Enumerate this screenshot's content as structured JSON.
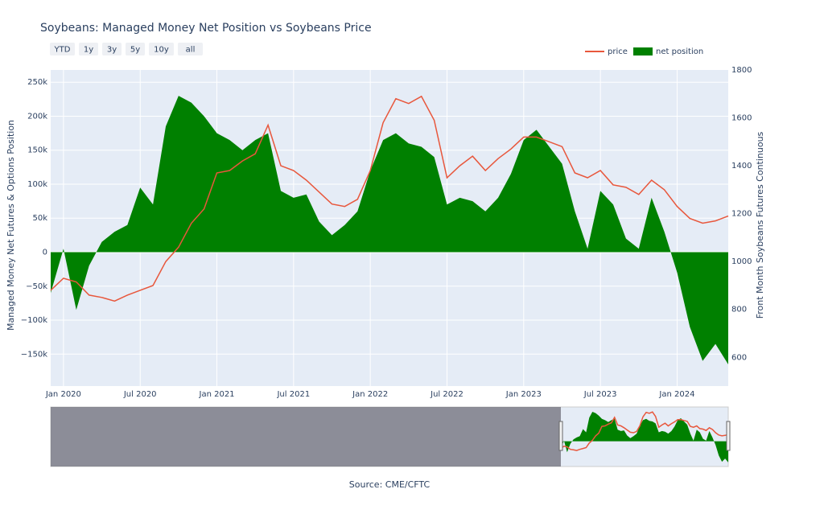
{
  "chart_data": {
    "type": "area-line",
    "title": "Soybeans: Managed Money Net Position vs Soybeans Price",
    "source": "Source: CME/CFTC",
    "y_label": "Managed Money Net Futures & Options Position",
    "y2_label": "Front Month Soybeans Futures Continuous",
    "range_buttons": [
      "YTD",
      "1y",
      "3y",
      "5y",
      "10y",
      "all"
    ],
    "x": [
      "2019-12",
      "2020-01",
      "2020-02",
      "2020-03",
      "2020-04",
      "2020-05",
      "2020-06",
      "2020-07",
      "2020-08",
      "2020-09",
      "2020-10",
      "2020-11",
      "2020-12",
      "2021-01",
      "2021-02",
      "2021-03",
      "2021-04",
      "2021-05",
      "2021-06",
      "2021-07",
      "2021-08",
      "2021-09",
      "2021-10",
      "2021-11",
      "2021-12",
      "2022-01",
      "2022-02",
      "2022-03",
      "2022-04",
      "2022-05",
      "2022-06",
      "2022-07",
      "2022-08",
      "2022-09",
      "2022-10",
      "2022-11",
      "2022-12",
      "2023-01",
      "2023-02",
      "2023-03",
      "2023-04",
      "2023-05",
      "2023-06",
      "2023-07",
      "2023-08",
      "2023-09",
      "2023-10",
      "2023-11",
      "2023-12",
      "2024-01",
      "2024-02",
      "2024-03",
      "2024-04",
      "2024-05"
    ],
    "series": [
      {
        "name": "price",
        "color": "#e8573c",
        "axis": "y2",
        "values": [
          880,
          930,
          915,
          860,
          850,
          835,
          860,
          880,
          900,
          1000,
          1060,
          1160,
          1220,
          1370,
          1380,
          1420,
          1450,
          1570,
          1400,
          1380,
          1340,
          1290,
          1240,
          1230,
          1260,
          1380,
          1580,
          1680,
          1660,
          1690,
          1590,
          1350,
          1400,
          1440,
          1380,
          1430,
          1470,
          1520,
          1520,
          1500,
          1480,
          1370,
          1350,
          1380,
          1320,
          1310,
          1280,
          1340,
          1300,
          1230,
          1180,
          1160,
          1170,
          1190
        ]
      },
      {
        "name": "net position",
        "color": "#008000",
        "values": [
          -60000,
          5000,
          -85000,
          -20000,
          15000,
          30000,
          40000,
          95000,
          70000,
          185000,
          230000,
          220000,
          200000,
          175000,
          165000,
          150000,
          165000,
          175000,
          90000,
          80000,
          85000,
          45000,
          25000,
          40000,
          60000,
          120000,
          165000,
          175000,
          160000,
          155000,
          140000,
          70000,
          80000,
          75000,
          60000,
          80000,
          115000,
          165000,
          180000,
          155000,
          130000,
          60000,
          5000,
          90000,
          70000,
          20000,
          5000,
          80000,
          30000,
          -30000,
          -110000,
          -160000,
          -135000,
          -165000
        ]
      }
    ],
    "xlim": [
      "2019-12",
      "2024-05"
    ],
    "xticks": [
      {
        "value": "2020-01",
        "label": "Jan 2020"
      },
      {
        "value": "2020-07",
        "label": "Jul 2020"
      },
      {
        "value": "2021-01",
        "label": "Jan 2021"
      },
      {
        "value": "2021-07",
        "label": "Jul 2021"
      },
      {
        "value": "2022-01",
        "label": "Jan 2022"
      },
      {
        "value": "2022-07",
        "label": "Jul 2022"
      },
      {
        "value": "2023-01",
        "label": "Jan 2023"
      },
      {
        "value": "2023-07",
        "label": "Jul 2023"
      },
      {
        "value": "2024-01",
        "label": "Jan 2024"
      }
    ],
    "ylim": [
      -197000,
      268000
    ],
    "yticks": [
      {
        "value": -150000,
        "label": "−150k"
      },
      {
        "value": -100000,
        "label": "−100k"
      },
      {
        "value": -50000,
        "label": "−50k"
      },
      0,
      {
        "value": 50000,
        "label": "50k"
      },
      {
        "value": 100000,
        "label": "100k"
      },
      {
        "value": 150000,
        "label": "150k"
      },
      {
        "value": 200000,
        "label": "200k"
      },
      {
        "value": 250000,
        "label": "250k"
      }
    ],
    "y2lim": [
      480,
      1800
    ],
    "y2ticks": [
      600,
      800,
      1000,
      1200,
      1400,
      1600,
      1800
    ],
    "grid": true
  }
}
